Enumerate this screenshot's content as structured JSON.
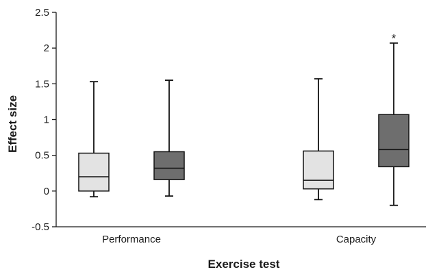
{
  "chart_data": {
    "type": "box",
    "title": "",
    "xlabel": "Exercise test",
    "ylabel": "Effect size",
    "ylim": [
      -0.5,
      2.5
    ],
    "yticks": [
      2.5,
      2,
      1.5,
      1,
      0.5,
      0,
      -0.5
    ],
    "ytick_labels": [
      "2.5",
      "2",
      "1.5",
      "1",
      "0.5",
      "0",
      "-0.5"
    ],
    "grid": false,
    "legend": false,
    "categories": [
      "Performance",
      "Capacity"
    ],
    "series": [
      {
        "color": "#e3e3e3",
        "boxes": [
          {
            "category": "Performance",
            "min": -0.08,
            "q1": 0.0,
            "median": 0.2,
            "q3": 0.53,
            "max": 1.53
          },
          {
            "category": "Capacity",
            "min": -0.12,
            "q1": 0.03,
            "median": 0.15,
            "q3": 0.56,
            "max": 1.57
          }
        ]
      },
      {
        "color": "#6e6e6e",
        "boxes": [
          {
            "category": "Performance",
            "min": -0.07,
            "q1": 0.16,
            "median": 0.32,
            "q3": 0.55,
            "max": 1.55
          },
          {
            "category": "Capacity",
            "min": -0.2,
            "q1": 0.34,
            "median": 0.58,
            "q3": 1.07,
            "max": 2.07
          }
        ]
      }
    ],
    "annotations": [
      {
        "text": "*",
        "category": "Capacity",
        "series_index": 1,
        "y": 2.1
      }
    ]
  }
}
